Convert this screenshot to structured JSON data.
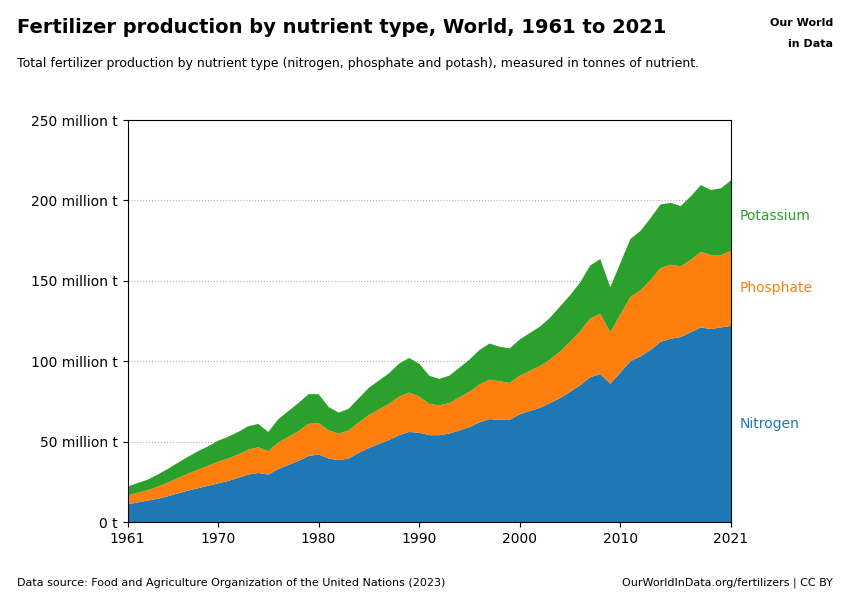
{
  "chart_data": {
    "type": "area",
    "stacked": true,
    "title": "Fertilizer production by nutrient type, World, 1961 to 2021",
    "subtitle": "Total fertilizer production by nutrient type (nitrogen, phosphate and potash), measured in tonnes of nutrient.",
    "annotations": [
      "Data source: Food and Agriculture Organization of the United Nations (2023)",
      "OurWorldInData.org/fertilizers | CC BY",
      "Our World",
      "in Data"
    ],
    "x": [
      1961,
      1962,
      1963,
      1964,
      1965,
      1966,
      1967,
      1968,
      1969,
      1970,
      1971,
      1972,
      1973,
      1974,
      1975,
      1976,
      1977,
      1978,
      1979,
      1980,
      1981,
      1982,
      1983,
      1984,
      1985,
      1986,
      1987,
      1988,
      1989,
      1990,
      1991,
      1992,
      1993,
      1994,
      1995,
      1996,
      1997,
      1998,
      1999,
      2000,
      2001,
      2002,
      2003,
      2004,
      2005,
      2006,
      2007,
      2008,
      2009,
      2010,
      2011,
      2012,
      2013,
      2014,
      2015,
      2016,
      2017,
      2018,
      2019,
      2020,
      2021
    ],
    "series": [
      {
        "name": "Nitrogen",
        "values": [
          11.0,
          12.2,
          13.3,
          14.5,
          16.0,
          17.8,
          19.5,
          21.0,
          22.5,
          24.0,
          25.5,
          27.5,
          29.5,
          30.5,
          29.5,
          33.0,
          35.5,
          38.0,
          41.0,
          42.0,
          39.5,
          38.5,
          39.5,
          43.0,
          46.0,
          48.5,
          51.0,
          54.0,
          56.0,
          55.5,
          54.0,
          54.0,
          55.0,
          57.0,
          59.0,
          62.0,
          64.0,
          63.5,
          63.5,
          67.0,
          69.0,
          71.0,
          74.0,
          77.0,
          81.0,
          85.0,
          90.0,
          92.0,
          86.0,
          93.0,
          100.0,
          103.0,
          107.0,
          112.0,
          114.0,
          115.0,
          118.0,
          121.0,
          120.0,
          121.0,
          122.0
        ]
      },
      {
        "name": "Phosphate",
        "values": [
          5.5,
          6.0,
          6.5,
          7.5,
          8.5,
          9.5,
          10.5,
          11.5,
          12.5,
          13.5,
          14.0,
          14.5,
          15.5,
          16.0,
          14.5,
          16.5,
          17.5,
          18.5,
          20.0,
          19.5,
          17.5,
          16.5,
          17.5,
          19.0,
          20.5,
          21.5,
          22.5,
          24.0,
          24.5,
          22.5,
          19.5,
          18.5,
          19.0,
          20.5,
          22.0,
          23.5,
          24.5,
          24.0,
          23.0,
          24.0,
          25.0,
          26.0,
          27.0,
          29.0,
          31.0,
          33.5,
          36.5,
          37.5,
          32.0,
          36.0,
          40.0,
          41.0,
          43.5,
          46.0,
          46.0,
          44.0,
          45.0,
          47.0,
          46.0,
          45.0,
          46.5
        ]
      },
      {
        "name": "Potassium",
        "values": [
          5.5,
          6.0,
          6.5,
          7.5,
          8.5,
          9.5,
          10.5,
          11.5,
          12.0,
          13.0,
          13.5,
          14.0,
          14.5,
          14.5,
          12.0,
          14.5,
          16.0,
          17.5,
          18.5,
          18.0,
          14.5,
          13.0,
          13.5,
          15.0,
          17.0,
          18.0,
          19.0,
          20.5,
          21.5,
          20.5,
          17.5,
          16.5,
          17.0,
          18.5,
          20.0,
          21.5,
          22.5,
          21.5,
          21.5,
          22.5,
          23.5,
          24.5,
          26.0,
          28.0,
          29.0,
          30.5,
          33.0,
          34.0,
          28.0,
          32.0,
          36.0,
          37.0,
          38.5,
          39.5,
          38.5,
          37.5,
          39.5,
          41.5,
          40.5,
          41.5,
          44.0
        ]
      }
    ],
    "xlim": [
      1961,
      2021
    ],
    "xticks": [
      1961,
      1970,
      1980,
      1990,
      2000,
      2010,
      2021
    ],
    "ylim": [
      0,
      250
    ],
    "yticks": [
      {
        "value": 0,
        "label": "0 t"
      },
      {
        "value": 50,
        "label": "50 million t"
      },
      {
        "value": 100,
        "label": "100 million t"
      },
      {
        "value": 150,
        "label": "150 million t"
      },
      {
        "value": 200,
        "label": "200 million t"
      },
      {
        "value": 250,
        "label": "250 million t"
      }
    ],
    "grid": "y"
  }
}
